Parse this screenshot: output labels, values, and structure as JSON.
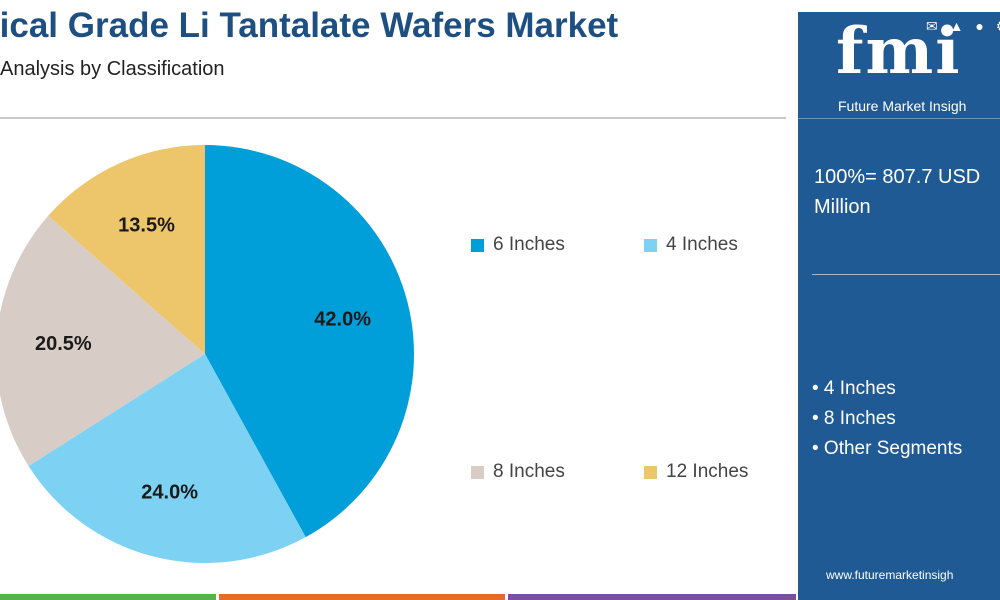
{
  "header": {
    "title": "tical Grade Li Tantalate Wafers Market",
    "subtitle": "al Analysis by Classification"
  },
  "chart_data": {
    "type": "pie",
    "categories": [
      "6 Inches",
      "4 Inches",
      "8 Inches",
      "12 Inches"
    ],
    "values": [
      42.0,
      24.0,
      20.5,
      13.5
    ],
    "labels": [
      "42.0%",
      "24.0%",
      "20.5%",
      "13.5%"
    ],
    "colors": [
      "#009fd9",
      "#7dd2f3",
      "#d8ccc6",
      "#edc56a"
    ],
    "legend_position": "right"
  },
  "side_panel": {
    "logo_text": "fmi",
    "logo_subtitle": "Future Market Insigh",
    "total_line1": "100%= 807.7 USD",
    "total_line2": "Million",
    "segments": [
      "• 4 Inches",
      "• 8 Inches",
      "• Other Segments"
    ],
    "website": "www.futuremarketinsigh",
    "icons": [
      "mail-icon",
      "chart-icon",
      "person-icon",
      "gear-icon"
    ]
  },
  "footer_colors": [
    "#5ab04a",
    "#e46b2a",
    "#7a4f9d",
    "#1f5a95"
  ]
}
